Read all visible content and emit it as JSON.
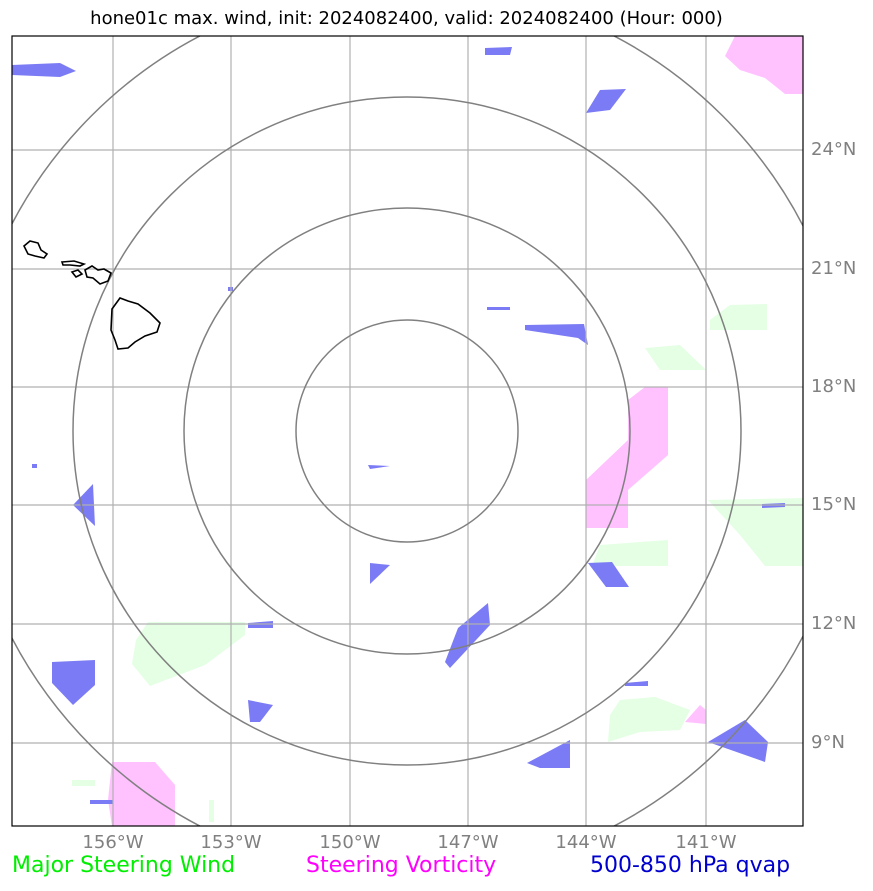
{
  "title": "hone01c max. wind, init: 2024082400, valid: 2024082400 (Hour: 000)",
  "lon_labels": [
    "156°W",
    "153°W",
    "150°W",
    "147°W",
    "144°W",
    "141°W"
  ],
  "lat_labels": [
    "24°N",
    "21°N",
    "18°N",
    "15°N",
    "12°N",
    "9°N"
  ],
  "legend": [
    {
      "label": "Major Steering Wind",
      "color": "#00ee00"
    },
    {
      "label": "Steering Vorticity",
      "color": "#ff00ff"
    },
    {
      "label": "500-850 hPa qvap",
      "color": "#0000cc"
    }
  ],
  "colors": {
    "qvap": "#7b7bf5",
    "vorticity": "#ffc2ff",
    "wind": "#e4ffe4",
    "grid": "#b0b0b0",
    "range_rings": "#808080",
    "coast": "#000000"
  }
}
